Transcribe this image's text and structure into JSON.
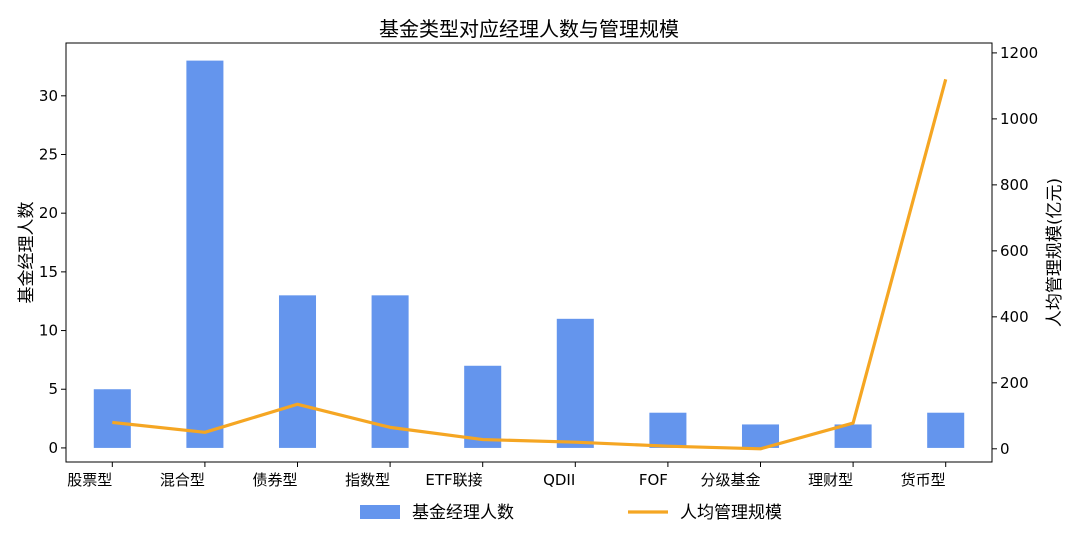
{
  "chart_data": {
    "type": "bar+line",
    "title": "基金类型对应经理人数与管理规模",
    "categories": [
      "股票型",
      "混合型",
      "债券型",
      "指数型",
      "ETF联接",
      "QDII",
      "FOF",
      "分级基金",
      "理财型",
      "货币型"
    ],
    "ylabel_left": "基金经理人数",
    "ylabel_right": "人均管理规模(亿元)",
    "left_axis": {
      "ylim": [
        -1.2,
        34.5
      ],
      "ticks": [
        0,
        5,
        10,
        15,
        20,
        25,
        30
      ]
    },
    "right_axis": {
      "ylim": [
        -40,
        1230
      ],
      "ticks": [
        0,
        200,
        400,
        600,
        800,
        1000,
        1200
      ]
    },
    "series": [
      {
        "name": "基金经理人数",
        "type": "bar",
        "axis": "left",
        "color": "#6495ED",
        "values": [
          5,
          33,
          13,
          13,
          7,
          11,
          3,
          2,
          2,
          3
        ]
      },
      {
        "name": "人均管理规模",
        "type": "line",
        "axis": "right",
        "color": "#F5A623",
        "values": [
          80,
          50,
          135,
          65,
          28,
          20,
          8,
          0,
          78,
          1120
        ]
      }
    ],
    "legend": {
      "placement": "bottom-center"
    },
    "grid": false
  }
}
